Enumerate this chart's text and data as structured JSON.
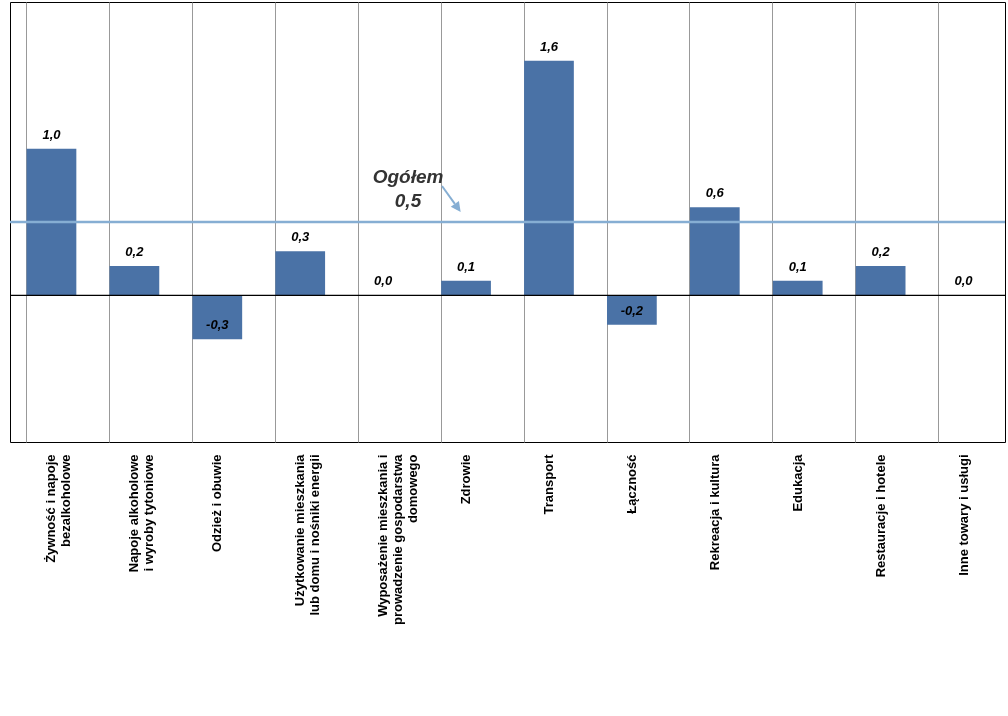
{
  "chart_data": {
    "type": "bar",
    "categories": [
      "Żywność i napoje bezalkoholowe",
      "Napoje alkoholowe i wyroby tytoniowe",
      "Odzież i obuwie",
      "Użytkowanie mieszkania lub domu i nośniki energii",
      "Wyposażenie mieszkania i prowadzenie gospodarstwa domowego",
      "Zdrowie",
      "Transport",
      "Łączność",
      "Rekreacja i kultura",
      "Edukacja",
      "Restauracje i hotele",
      "Inne towary i usługi"
    ],
    "values": [
      1.0,
      0.2,
      -0.3,
      0.3,
      0.0,
      0.1,
      1.6,
      -0.2,
      0.6,
      0.1,
      0.2,
      0.0
    ],
    "value_labels": [
      "1,0",
      "0,2",
      "-0,3",
      "0,3",
      "0,0",
      "0,1",
      "1,6",
      "-0,2",
      "0,6",
      "0,1",
      "0,2",
      "0,0"
    ],
    "color": "#4a72a6",
    "ylim": [
      -1,
      2
    ],
    "tick_labels": "x",
    "grid": "x",
    "ref_lines": [
      {
        "axis": "y",
        "value": 0.5,
        "label": "Ogółem 0,5",
        "color": "#86aed3"
      }
    ]
  }
}
